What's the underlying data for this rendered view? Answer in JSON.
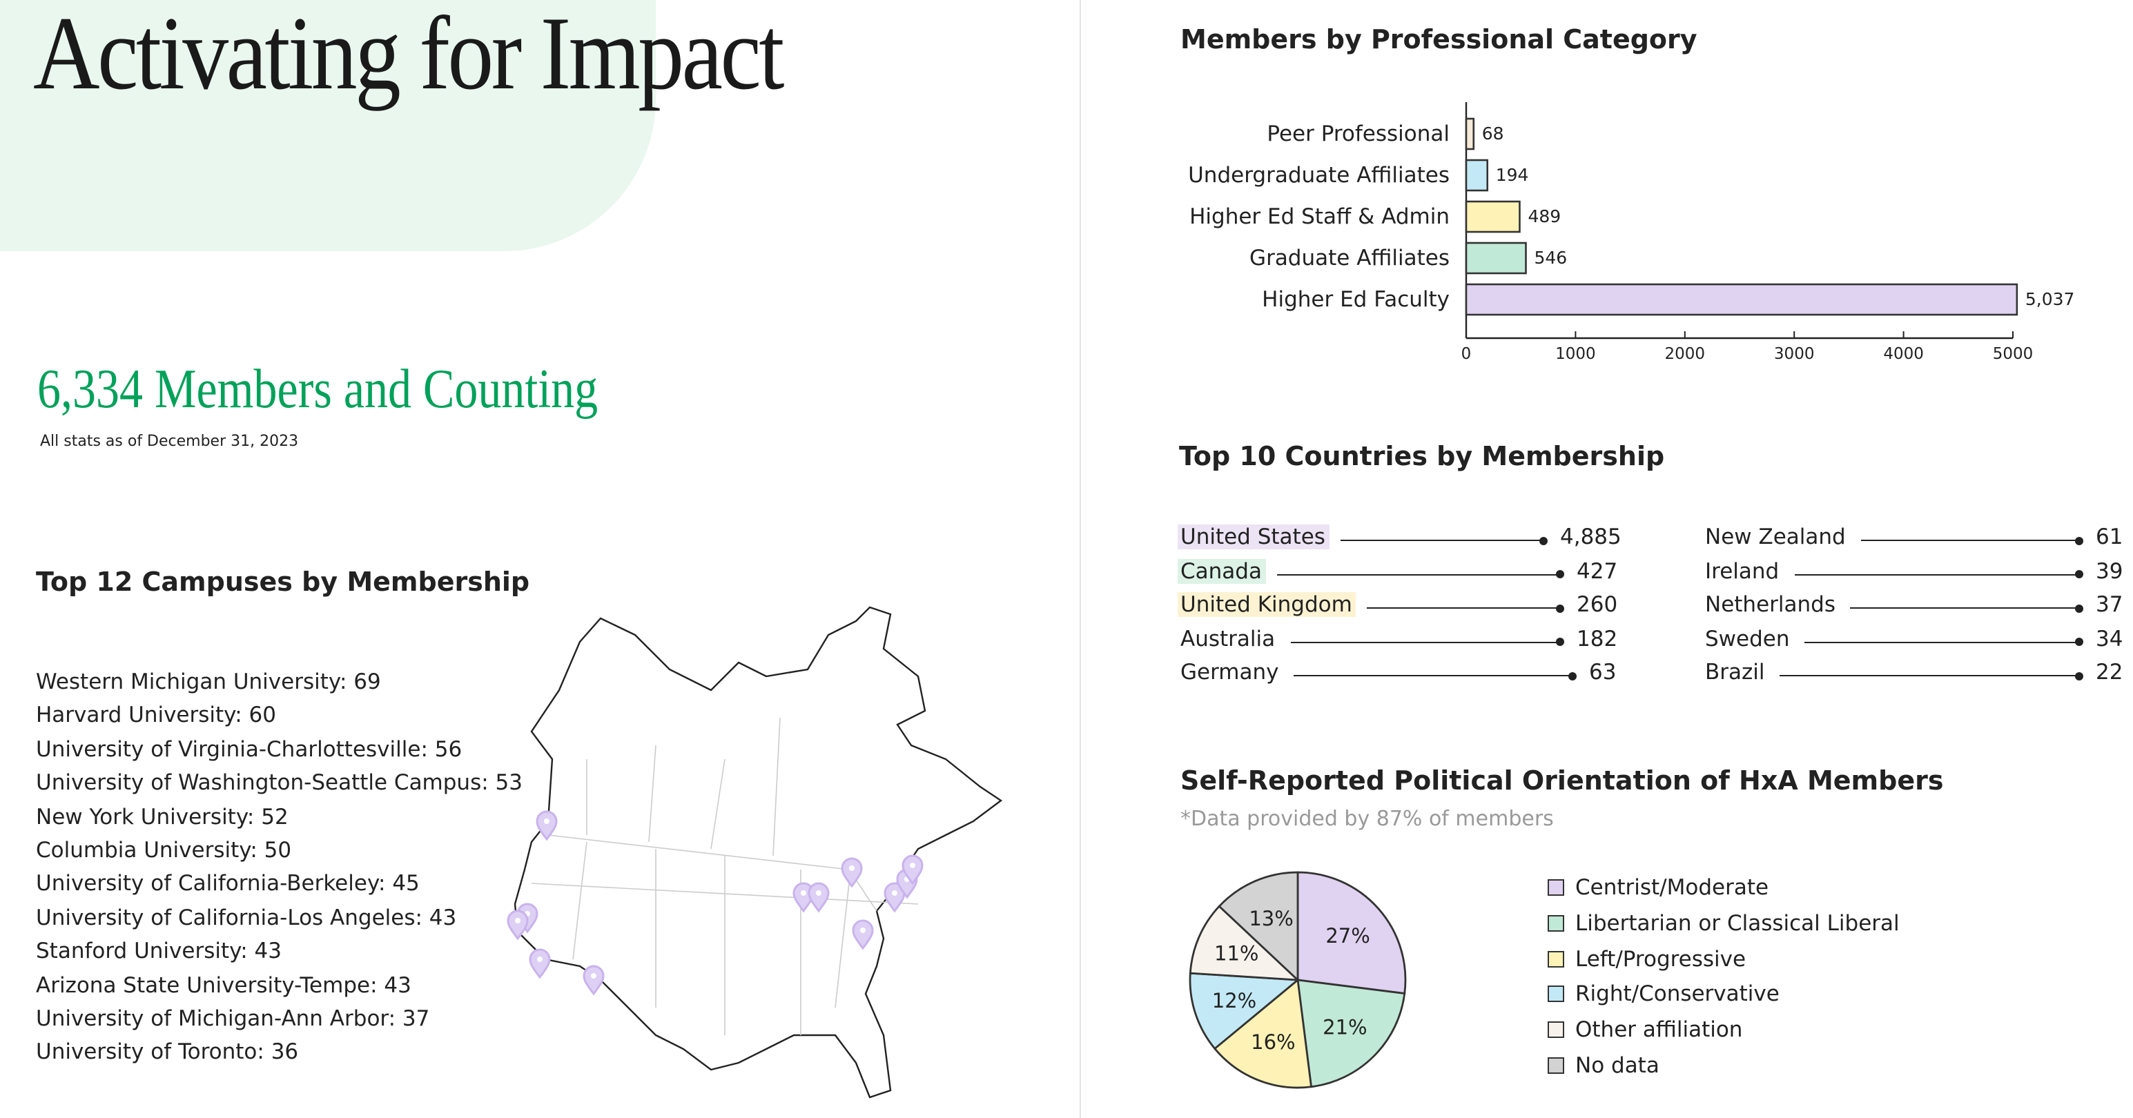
{
  "header": {
    "title": "Activating for Impact",
    "members_headline": "6,334 Members and Counting",
    "as_of": "All stats as of December 31, 2023"
  },
  "campuses": {
    "title": "Top 12 Campuses by Membership",
    "items": [
      "Western Michigan University: 69",
      "Harvard University: 60",
      "University of Virginia-Charlottesville: 56",
      "University of Washington-Seattle Campus: 53",
      "New York University: 52",
      "Columbia University: 50",
      "University of California-Berkeley: 45",
      "University of California-Los Angeles: 43",
      "Stanford University: 43",
      "Arizona State University-Tempe: 43",
      "University of Michigan-Ann Arbor: 37",
      "University of Toronto: 36"
    ],
    "map_pin_color": "#c9b3ec"
  },
  "countries": {
    "title": "Top 10 Countries by Membership",
    "left": [
      {
        "name": "United States",
        "value": "4,885",
        "highlight": "#ece3f4"
      },
      {
        "name": "Canada",
        "value": "427",
        "highlight": "#ddf3e6"
      },
      {
        "name": "United Kingdom",
        "value": "260",
        "highlight": "#fdf3d3"
      },
      {
        "name": "Australia",
        "value": "182",
        "highlight": ""
      },
      {
        "name": "Germany",
        "value": "63",
        "highlight": ""
      }
    ],
    "right": [
      {
        "name": "New Zealand",
        "value": "61"
      },
      {
        "name": "Ireland",
        "value": "39"
      },
      {
        "name": "Netherlands",
        "value": "37"
      },
      {
        "name": "Sweden",
        "value": "34"
      },
      {
        "name": "Brazil",
        "value": "22"
      }
    ]
  },
  "political": {
    "note": "*Data provided by 87% of members"
  },
  "chart_data": [
    {
      "type": "bar",
      "orientation": "horizontal",
      "title": "Members by Professional Category",
      "categories": [
        "Peer Professional",
        "Undergraduate Affiliates",
        "Higher Ed Staff & Admin",
        "Graduate Affiliates",
        "Higher Ed Faculty"
      ],
      "values": [
        68,
        194,
        489,
        546,
        5037
      ],
      "value_labels": [
        "68",
        "194",
        "489",
        "546",
        "5,037"
      ],
      "colors": [
        "#f8ead9",
        "#c3e9f6",
        "#fef2b6",
        "#c1e9d7",
        "#e0d2f1"
      ],
      "xlim": [
        0,
        5000
      ],
      "xticks": [
        "0",
        "1000",
        "2000",
        "3000",
        "4000",
        "5000"
      ],
      "xlabel": "",
      "ylabel": ""
    },
    {
      "type": "pie",
      "title": "Self-Reported Political Orientation of HxA Members",
      "labels": [
        "Centrist/Moderate",
        "Libertarian or Classical Liberal",
        "Left/Progressive",
        "Right/Conservative",
        "Other affiliation",
        "No data"
      ],
      "values": [
        27,
        21,
        16,
        12,
        11,
        13
      ],
      "value_labels": [
        "27%",
        "21%",
        "16%",
        "12%",
        "11%",
        "13%"
      ],
      "colors": [
        "#e0d2f1",
        "#c1e9d7",
        "#fef2b6",
        "#c3e9f6",
        "#f8f2ec",
        "#d3d3d3"
      ],
      "legend": "right"
    }
  ]
}
